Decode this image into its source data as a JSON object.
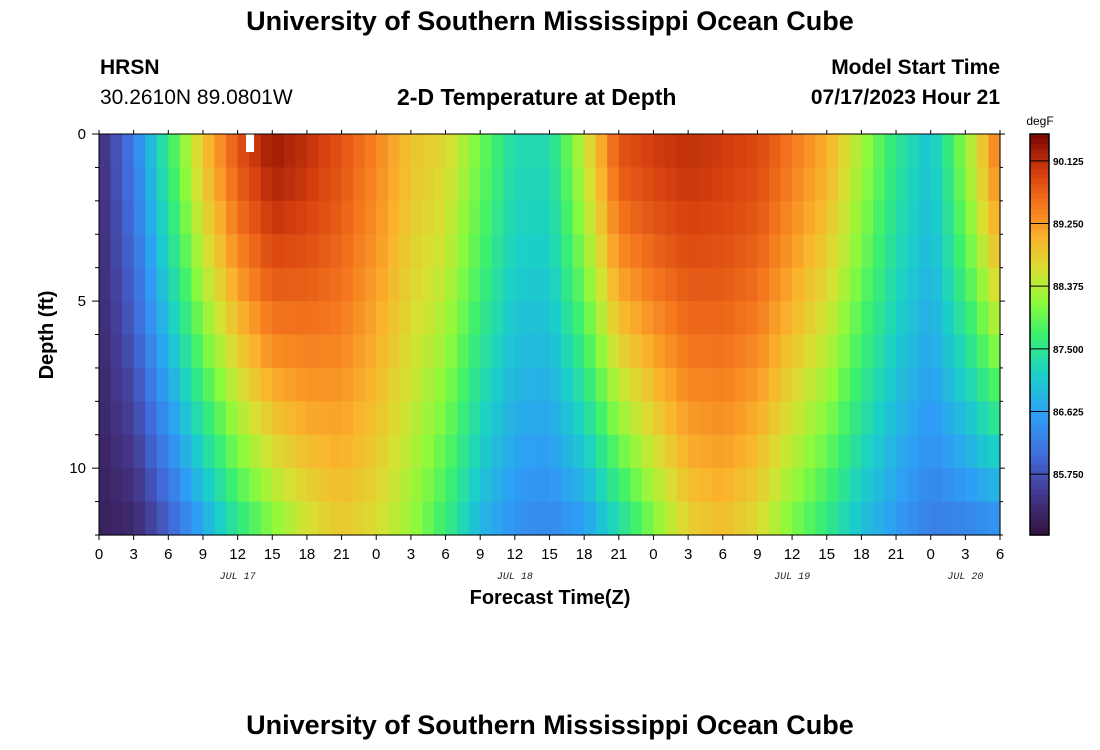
{
  "page": {
    "title_top": "University of Southern Mississippi Ocean Cube",
    "title_bottom": "University of Southern Mississippi Ocean Cube",
    "station_name": "HRSN",
    "station_coords": "30.2610N  89.0801W",
    "chart_heading": "2-D Temperature at Depth",
    "model_start_label": "Model Start Time",
    "model_start_value": "07/17/2023 Hour 21"
  },
  "chart_data": {
    "type": "heatmap",
    "title": "2-D Temperature at Depth",
    "xlabel": "Forecast Time(Z)",
    "ylabel": "Depth (ft)",
    "x_hours_range": [
      0,
      78
    ],
    "ylim": [
      0,
      12
    ],
    "y_ticks": [
      0,
      5,
      10
    ],
    "x_tick_labels": [
      "0",
      "3",
      "6",
      "9",
      "12",
      "15",
      "18",
      "21",
      "0",
      "3",
      "6",
      "9",
      "12",
      "15",
      "18",
      "21",
      "0",
      "3",
      "6",
      "9",
      "12",
      "15",
      "18",
      "21",
      "0",
      "3",
      "6"
    ],
    "date_labels": [
      {
        "label": "JUL 17",
        "hour": 12
      },
      {
        "label": "JUL 18",
        "hour": 36
      },
      {
        "label": "JUL 19",
        "hour": 60
      },
      {
        "label": "JUL 20",
        "hour": 75
      }
    ],
    "colorbar": {
      "unit": "degF",
      "min": 84.9,
      "max": 90.5,
      "tick_values": [
        90.125,
        89.25,
        88.375,
        87.5,
        86.625,
        85.75
      ],
      "tick_labels": [
        "90.125",
        "89.250",
        "88.375",
        "87.500",
        "86.625",
        "85.750"
      ]
    },
    "hour_profile": [
      {
        "hour": 0,
        "surface": 85.3,
        "bottom": 85.1
      },
      {
        "hour": 3,
        "surface": 86.2,
        "bottom": 85.2
      },
      {
        "hour": 6,
        "surface": 87.6,
        "bottom": 85.8
      },
      {
        "hour": 9,
        "surface": 88.9,
        "bottom": 86.6
      },
      {
        "hour": 12,
        "surface": 89.8,
        "bottom": 87.4
      },
      {
        "hour": 15,
        "surface": 90.3,
        "bottom": 88.0
      },
      {
        "hour": 18,
        "surface": 90.1,
        "bottom": 88.5
      },
      {
        "hour": 21,
        "surface": 89.8,
        "bottom": 88.8
      },
      {
        "hour": 24,
        "surface": 89.4,
        "bottom": 88.6
      },
      {
        "hour": 27,
        "surface": 88.9,
        "bottom": 88.2
      },
      {
        "hour": 30,
        "surface": 88.7,
        "bottom": 87.6
      },
      {
        "hour": 33,
        "surface": 88.0,
        "bottom": 86.8
      },
      {
        "hour": 36,
        "surface": 87.3,
        "bottom": 86.4
      },
      {
        "hour": 39,
        "surface": 87.3,
        "bottom": 86.3
      },
      {
        "hour": 42,
        "surface": 88.5,
        "bottom": 86.5
      },
      {
        "hour": 45,
        "surface": 89.8,
        "bottom": 87.2
      },
      {
        "hour": 48,
        "surface": 90.0,
        "bottom": 88.0
      },
      {
        "hour": 51,
        "surface": 90.1,
        "bottom": 88.7
      },
      {
        "hour": 54,
        "surface": 90.0,
        "bottom": 88.9
      },
      {
        "hour": 57,
        "surface": 89.9,
        "bottom": 88.6
      },
      {
        "hour": 60,
        "surface": 89.5,
        "bottom": 88.0
      },
      {
        "hour": 63,
        "surface": 89.1,
        "bottom": 87.5
      },
      {
        "hour": 66,
        "surface": 88.3,
        "bottom": 86.9
      },
      {
        "hour": 69,
        "surface": 87.5,
        "bottom": 86.5
      },
      {
        "hour": 72,
        "surface": 87.0,
        "bottom": 86.2
      },
      {
        "hour": 75,
        "surface": 88.2,
        "bottom": 86.2
      },
      {
        "hour": 78,
        "surface": 89.6,
        "bottom": 86.3
      }
    ]
  }
}
